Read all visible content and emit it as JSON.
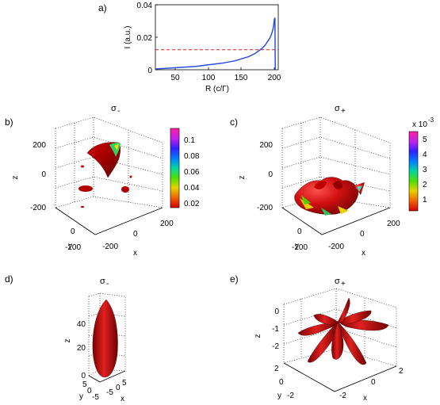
{
  "panels": {
    "a": {
      "label": "a)",
      "ylabel": "I (a.u.)",
      "xlabel": "R (c/Γ)",
      "xticks": [
        "50",
        "100",
        "150",
        "200"
      ],
      "yticks": [
        "0",
        "0.02",
        "0.04"
      ]
    },
    "b": {
      "label": "b)",
      "title": "σ",
      "title_sub": "-",
      "zticks": [
        "200",
        "0",
        "-200"
      ],
      "yticks": [
        "0",
        "-200"
      ],
      "xticks": [
        "-200",
        "0",
        "200"
      ],
      "zlabel": "z",
      "ylabel": "y",
      "xlabel": "x",
      "colorbar_ticks": [
        "0.1",
        "0.08",
        "0.06",
        "0.04",
        "0.02"
      ]
    },
    "c": {
      "label": "c)",
      "title": "σ",
      "title_sub": "+",
      "zticks": [
        "200",
        "0",
        "-200"
      ],
      "yticks": [
        "0",
        "-200"
      ],
      "xticks": [
        "-200",
        "0",
        "200"
      ],
      "zlabel": "z",
      "ylabel": "y",
      "xlabel": "x",
      "colorbar_ticks": [
        "5",
        "4",
        "3",
        "2",
        "1"
      ],
      "colorbar_scale": "x 10",
      "colorbar_exp": "-3"
    },
    "d": {
      "label": "d)",
      "title": "σ",
      "title_sub": "-",
      "zticks": [
        "40",
        "20",
        "0"
      ],
      "yticks": [
        "5",
        "0",
        "-5"
      ],
      "xticks": [
        "-5",
        "0",
        "5"
      ],
      "zlabel": "z",
      "ylabel": "y",
      "xlabel": "x"
    },
    "e": {
      "label": "e)",
      "title": "σ",
      "title_sub": "+",
      "zticks": [
        "0",
        "-1",
        "-2"
      ],
      "yticks": [
        "2",
        "0",
        "-2"
      ],
      "xticks": [
        "-2",
        "0",
        "2"
      ],
      "zlabel": "z",
      "ylabel": "y",
      "xlabel": "x"
    }
  },
  "chart_data": {
    "type": "line",
    "title": "",
    "xlabel": "R (c/Γ)",
    "ylabel": "I (a.u.)",
    "xlim": [
      20,
      205
    ],
    "ylim": [
      0,
      0.04
    ],
    "grid": false,
    "series": [
      {
        "color": "#2a4fe0",
        "x": [
          20,
          40,
          60,
          80,
          100,
          120,
          140,
          160,
          170,
          180,
          185,
          190,
          193,
          195,
          197,
          198,
          199,
          200,
          200.5
        ],
        "y": [
          0.0005,
          0.001,
          0.0015,
          0.002,
          0.003,
          0.004,
          0.0055,
          0.008,
          0.01,
          0.013,
          0.015,
          0.018,
          0.02,
          0.022,
          0.025,
          0.027,
          0.031,
          0.032,
          0.0
        ]
      }
    ],
    "reference_line": {
      "y": 0.0123,
      "style": "dashed",
      "color": "#e02020"
    }
  }
}
